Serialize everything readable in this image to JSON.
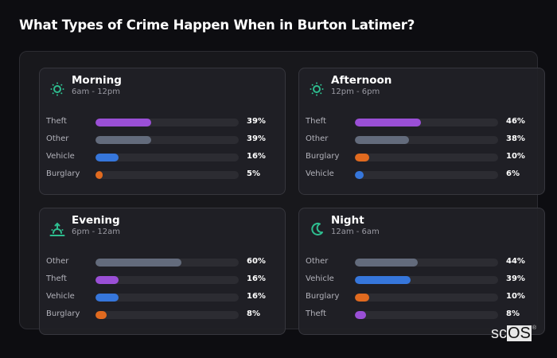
{
  "page": {
    "title": "What Types of Crime Happen When in Burton Latimer?"
  },
  "colors": {
    "theft": "#9a4fd6",
    "other": "#636b7c",
    "vehicle": "#3676db",
    "burglary": "#e06a1f",
    "icon": "#2ebd8f"
  },
  "cards": [
    {
      "name": "Morning",
      "range": "6am - 12pm",
      "icon": "sun-icon",
      "rows": [
        {
          "label": "Theft",
          "value": 39,
          "pct": "39%",
          "color": "#9a4fd6"
        },
        {
          "label": "Other",
          "value": 39,
          "pct": "39%",
          "color": "#636b7c"
        },
        {
          "label": "Vehicle",
          "value": 16,
          "pct": "16%",
          "color": "#3676db"
        },
        {
          "label": "Burglary",
          "value": 5,
          "pct": "5%",
          "color": "#e06a1f"
        }
      ]
    },
    {
      "name": "Afternoon",
      "range": "12pm - 6pm",
      "icon": "sun-icon",
      "rows": [
        {
          "label": "Theft",
          "value": 46,
          "pct": "46%",
          "color": "#9a4fd6"
        },
        {
          "label": "Other",
          "value": 38,
          "pct": "38%",
          "color": "#636b7c"
        },
        {
          "label": "Burglary",
          "value": 10,
          "pct": "10%",
          "color": "#e06a1f"
        },
        {
          "label": "Vehicle",
          "value": 6,
          "pct": "6%",
          "color": "#3676db"
        }
      ]
    },
    {
      "name": "Evening",
      "range": "6pm - 12am",
      "icon": "sunset-icon",
      "rows": [
        {
          "label": "Other",
          "value": 60,
          "pct": "60%",
          "color": "#636b7c"
        },
        {
          "label": "Theft",
          "value": 16,
          "pct": "16%",
          "color": "#9a4fd6"
        },
        {
          "label": "Vehicle",
          "value": 16,
          "pct": "16%",
          "color": "#3676db"
        },
        {
          "label": "Burglary",
          "value": 8,
          "pct": "8%",
          "color": "#e06a1f"
        }
      ]
    },
    {
      "name": "Night",
      "range": "12am - 6am",
      "icon": "moon-icon",
      "rows": [
        {
          "label": "Other",
          "value": 44,
          "pct": "44%",
          "color": "#636b7c"
        },
        {
          "label": "Vehicle",
          "value": 39,
          "pct": "39%",
          "color": "#3676db"
        },
        {
          "label": "Burglary",
          "value": 10,
          "pct": "10%",
          "color": "#e06a1f"
        },
        {
          "label": "Theft",
          "value": 8,
          "pct": "8%",
          "color": "#9a4fd6"
        }
      ]
    }
  ],
  "logo": {
    "sc": "sc",
    "os": "OS",
    "reg": "®"
  },
  "chart_data": [
    {
      "type": "bar",
      "title": "Morning",
      "subtitle": "6am - 12pm",
      "orientation": "horizontal",
      "categories": [
        "Theft",
        "Other",
        "Vehicle",
        "Burglary"
      ],
      "values": [
        39,
        39,
        16,
        5
      ],
      "unit": "%",
      "xlim": [
        0,
        100
      ]
    },
    {
      "type": "bar",
      "title": "Afternoon",
      "subtitle": "12pm - 6pm",
      "orientation": "horizontal",
      "categories": [
        "Theft",
        "Other",
        "Burglary",
        "Vehicle"
      ],
      "values": [
        46,
        38,
        10,
        6
      ],
      "unit": "%",
      "xlim": [
        0,
        100
      ]
    },
    {
      "type": "bar",
      "title": "Evening",
      "subtitle": "6pm - 12am",
      "orientation": "horizontal",
      "categories": [
        "Other",
        "Theft",
        "Vehicle",
        "Burglary"
      ],
      "values": [
        60,
        16,
        16,
        8
      ],
      "unit": "%",
      "xlim": [
        0,
        100
      ]
    },
    {
      "type": "bar",
      "title": "Night",
      "subtitle": "12am - 6am",
      "orientation": "horizontal",
      "categories": [
        "Other",
        "Vehicle",
        "Burglary",
        "Theft"
      ],
      "values": [
        44,
        39,
        10,
        8
      ],
      "unit": "%",
      "xlim": [
        0,
        100
      ]
    }
  ]
}
